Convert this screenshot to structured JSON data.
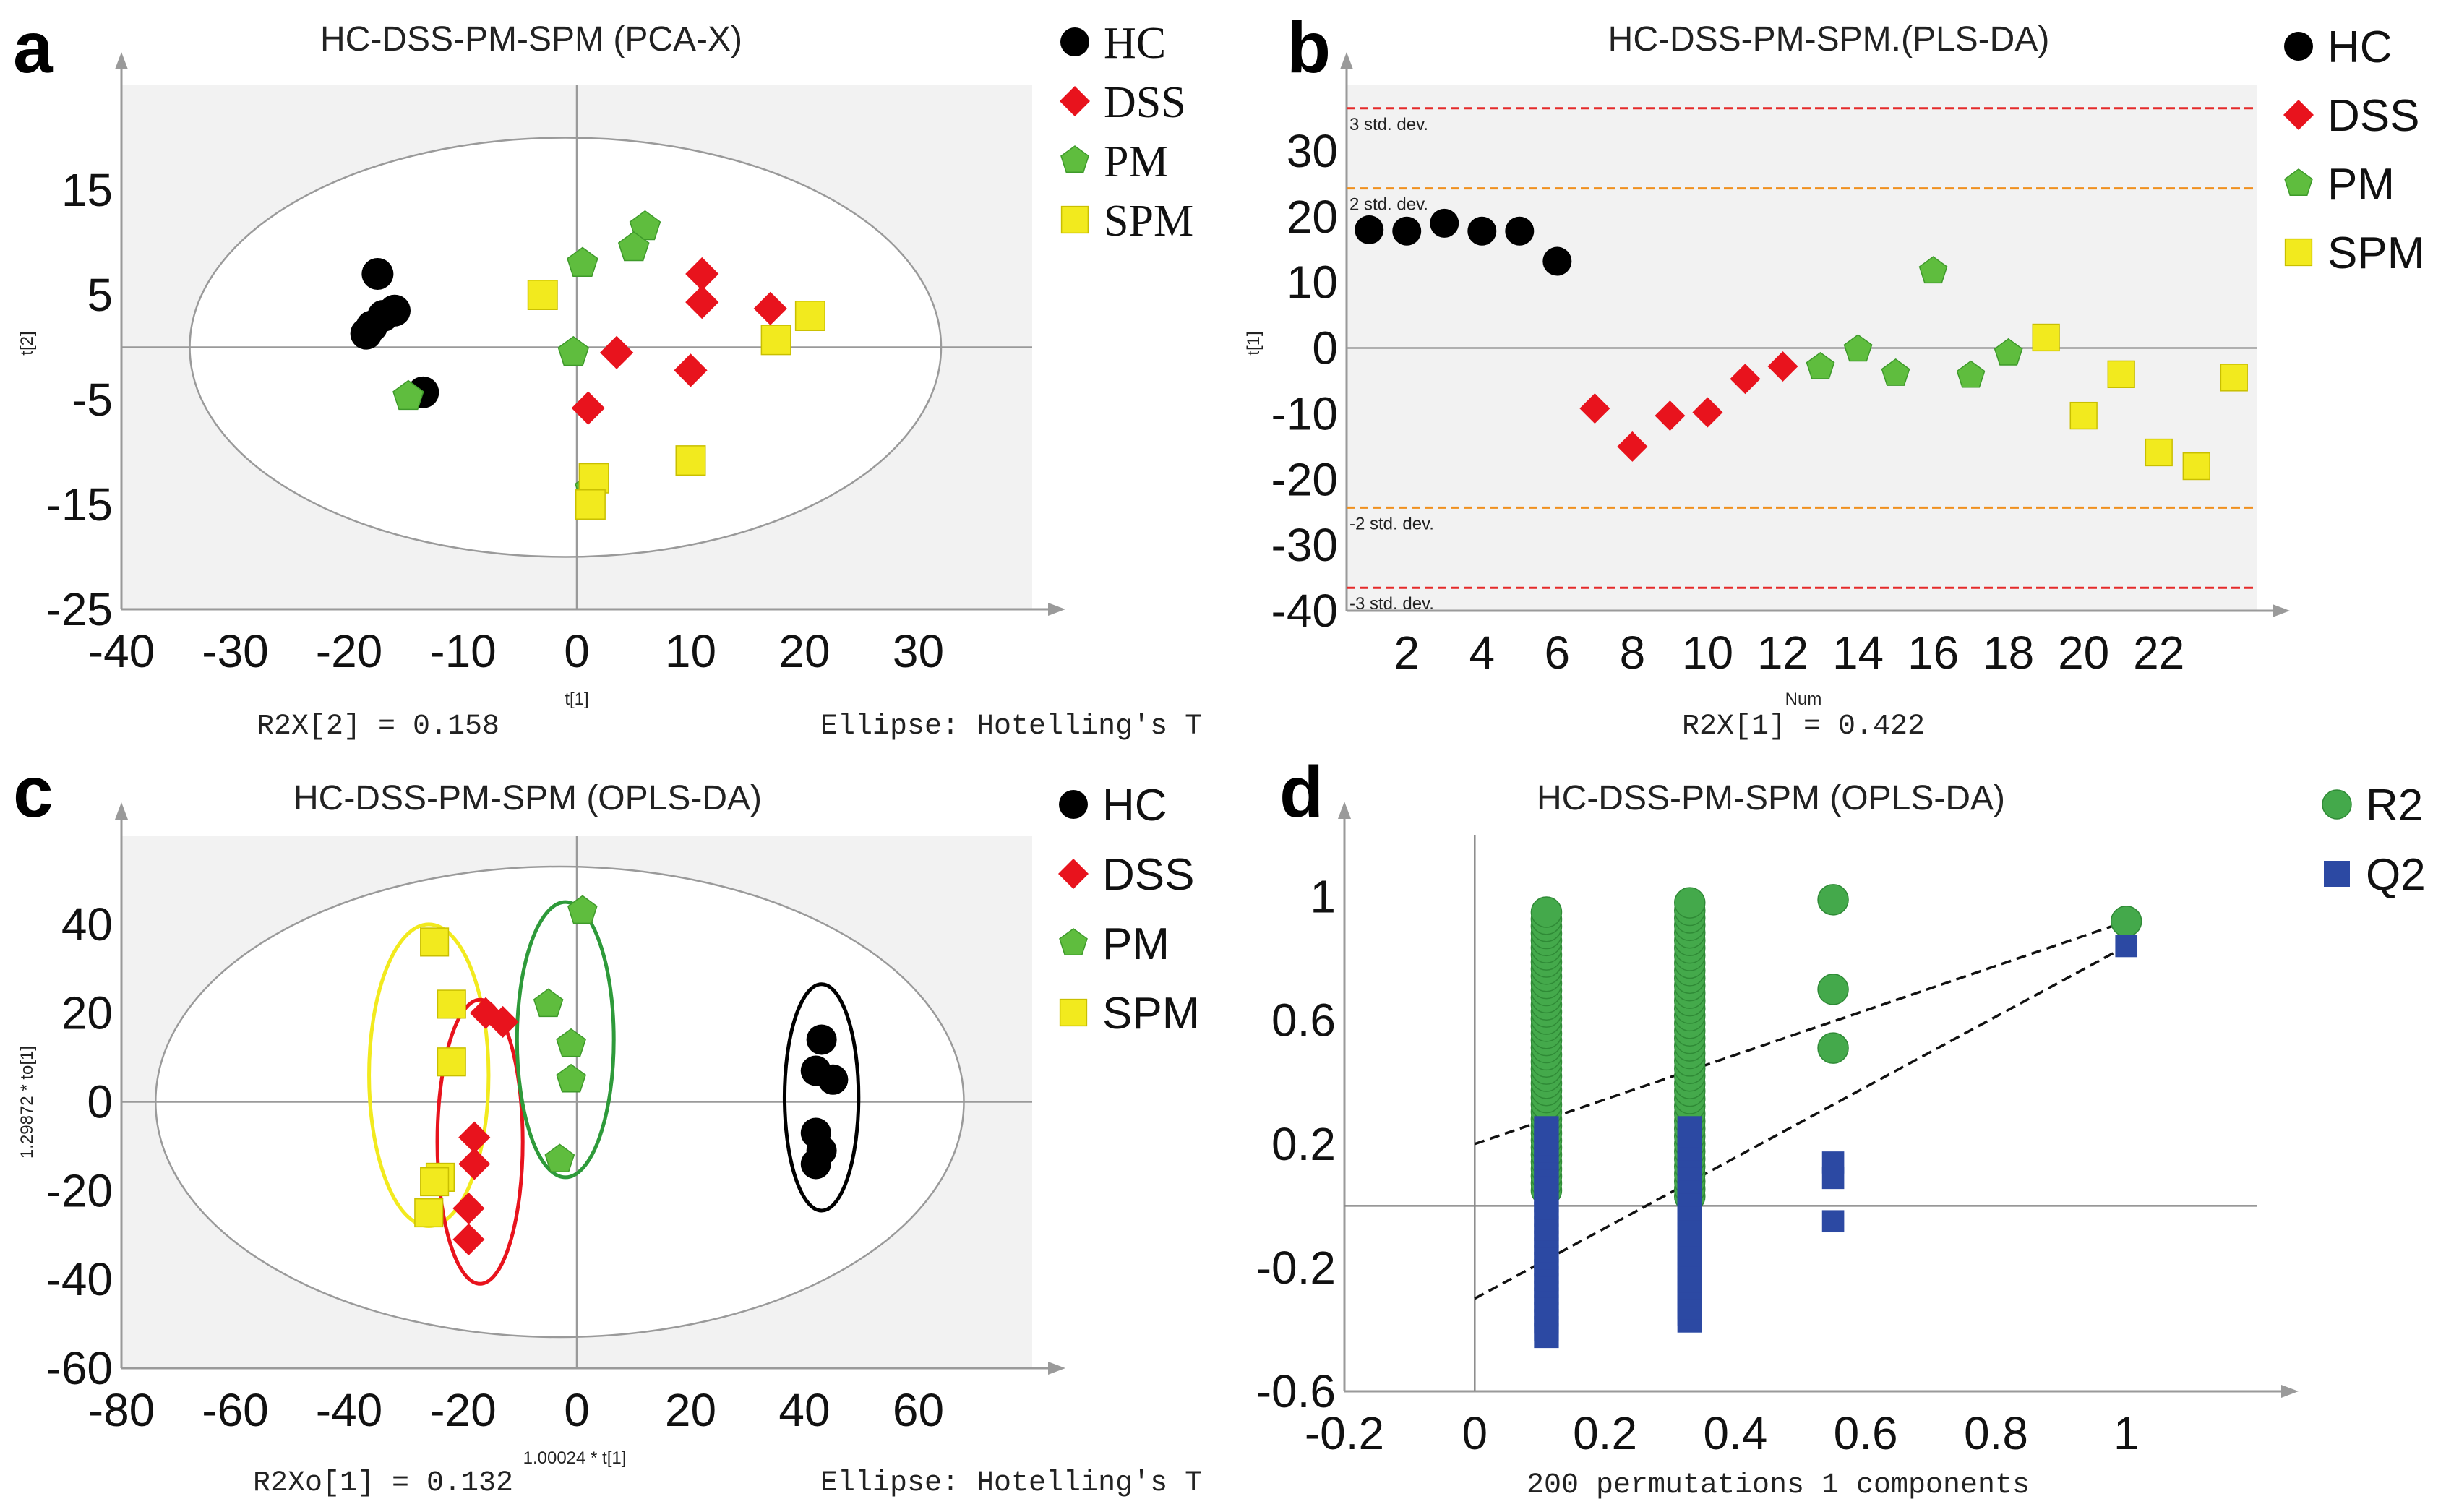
{
  "figure": {
    "colors": {
      "HC": "#000000",
      "DSS": "#e8131d",
      "PM": "#5fbd3e",
      "SPM": "#f2ea1e",
      "R2": "#44a94b",
      "Q2": "#2c49a3",
      "plot_bg": "#f2f2f2"
    }
  },
  "chart_data": [
    {
      "panel": "a",
      "type": "scatter",
      "title": "HC-DSS-PM-SPM (PCA-X)",
      "xlabel": "t[1]",
      "ylabel": "t[2]",
      "xlim": [
        -40,
        40
      ],
      "ylim": [
        -25,
        25
      ],
      "xticks": [
        -40,
        -30,
        -20,
        -10,
        0,
        10,
        20,
        30
      ],
      "yticks": [
        -25,
        -15,
        -5,
        5,
        15
      ],
      "footer_left": "R2X[2] = 0.158",
      "footer_right": "Ellipse: Hotelling's T",
      "legend": [
        "HC",
        "DSS",
        "PM",
        "SPM"
      ],
      "series": [
        {
          "name": "HC",
          "points": [
            [
              -17.5,
              7
            ],
            [
              -16,
              3.5
            ],
            [
              -17,
              3
            ],
            [
              -18,
              2
            ],
            [
              -18.5,
              1.3
            ],
            [
              -13.5,
              -4.3
            ]
          ]
        },
        {
          "name": "DSS",
          "points": [
            [
              11,
              7
            ],
            [
              11,
              4.3
            ],
            [
              17,
              3.7
            ],
            [
              3.5,
              -0.5
            ],
            [
              10,
              -2.2
            ],
            [
              1,
              -5.8
            ]
          ]
        },
        {
          "name": "PM",
          "points": [
            [
              6,
              11.5
            ],
            [
              5,
              9.5
            ],
            [
              0.5,
              8
            ],
            [
              -0.3,
              -0.5
            ],
            [
              -14.8,
              -4.7
            ],
            [
              1.2,
              -13.5
            ]
          ]
        },
        {
          "name": "SPM",
          "points": [
            [
              -3,
              5
            ],
            [
              20.5,
              3
            ],
            [
              17.5,
              0.7
            ],
            [
              10,
              -10.8
            ],
            [
              1.5,
              -12.5
            ],
            [
              1.2,
              -15
            ]
          ]
        }
      ],
      "ellipse": {
        "cx": -1,
        "cy": 0,
        "rx": 33,
        "ry": 20
      }
    },
    {
      "panel": "b",
      "type": "scatter",
      "title": "HC-DSS-PM-SPM.(PLS-DA)",
      "xlabel": "Num",
      "ylabel": "t[1]",
      "xlim": [
        0.4,
        24.6
      ],
      "ylim": [
        -40,
        40
      ],
      "xticks": [
        2,
        4,
        6,
        8,
        10,
        12,
        14,
        16,
        18,
        20,
        22
      ],
      "yticks": [
        -40,
        -30,
        -20,
        -10,
        0,
        10,
        20,
        30
      ],
      "footer_center": "R2X[1] = 0.422",
      "legend": [
        "HC",
        "DSS",
        "PM",
        "SPM"
      ],
      "reference_lines": [
        {
          "label": "3 std. dev.",
          "y": 36.5,
          "color": "#e52b2b"
        },
        {
          "label": "2 std. dev.",
          "y": 24.3,
          "color": "#f0901e"
        },
        {
          "label": "-2 std. dev.",
          "y": -24.3,
          "color": "#f0901e"
        },
        {
          "label": "-3 std. dev.",
          "y": -36.5,
          "color": "#e52b2b"
        }
      ],
      "series": [
        {
          "name": "HC",
          "points": [
            [
              1,
              18
            ],
            [
              2,
              17.8
            ],
            [
              3,
              19
            ],
            [
              4,
              17.8
            ],
            [
              5,
              17.8
            ],
            [
              6,
              13.2
            ]
          ]
        },
        {
          "name": "DSS",
          "points": [
            [
              7,
              -9.2
            ],
            [
              8,
              -15
            ],
            [
              9,
              -10.3
            ],
            [
              10,
              -9.8
            ],
            [
              11,
              -4.7
            ],
            [
              12,
              -2.8
            ]
          ]
        },
        {
          "name": "PM",
          "points": [
            [
              13,
              -2.9
            ],
            [
              14,
              -0.2
            ],
            [
              15,
              -3.9
            ],
            [
              16,
              11.7
            ],
            [
              17,
              -4.2
            ],
            [
              18,
              -0.8
            ]
          ]
        },
        {
          "name": "SPM",
          "points": [
            [
              19,
              1.6
            ],
            [
              20,
              -10.3
            ],
            [
              21,
              -4
            ],
            [
              22,
              -15.9
            ],
            [
              23,
              -18
            ],
            [
              24,
              -4.5
            ]
          ]
        }
      ]
    },
    {
      "panel": "c",
      "type": "scatter",
      "title": "HC-DSS-PM-SPM (OPLS-DA)",
      "xlabel": "1.00024 * t[1]",
      "ylabel": "1.29872 * to[1]",
      "xlim": [
        -80,
        80
      ],
      "ylim": [
        -60,
        60
      ],
      "xticks": [
        -80,
        -60,
        -40,
        -20,
        0,
        20,
        40,
        60
      ],
      "yticks": [
        -60,
        -40,
        -20,
        0,
        20,
        40
      ],
      "footer_left": "R2Xo[1] = 0.132",
      "footer_right": "Ellipse: Hotelling's T",
      "legend": [
        "HC",
        "DSS",
        "PM",
        "SPM"
      ],
      "series": [
        {
          "name": "HC",
          "points": [
            [
              43,
              14
            ],
            [
              42,
              7
            ],
            [
              45,
              5
            ],
            [
              42,
              -7
            ],
            [
              43,
              -11
            ],
            [
              42,
              -14
            ]
          ]
        },
        {
          "name": "DSS",
          "points": [
            [
              -16,
              20
            ],
            [
              -13,
              18
            ],
            [
              -18,
              -8
            ],
            [
              -18,
              -14
            ],
            [
              -19,
              -24
            ],
            [
              -19,
              -31
            ]
          ]
        },
        {
          "name": "PM",
          "points": [
            [
              1,
              43
            ],
            [
              -5,
              22
            ],
            [
              -1,
              13
            ],
            [
              -1,
              5
            ],
            [
              -3,
              -13
            ]
          ]
        },
        {
          "name": "SPM",
          "points": [
            [
              -25,
              36
            ],
            [
              -22,
              22
            ],
            [
              -22,
              9
            ],
            [
              -24,
              -17
            ],
            [
              -25,
              -18
            ],
            [
              -26,
              -25
            ]
          ]
        }
      ],
      "ellipse": {
        "cx": -3,
        "cy": 0,
        "rx": 71,
        "ry": 53
      },
      "group_ellipses": [
        {
          "name": "SPM",
          "cx": -26,
          "cy": 6,
          "rx": 10.5,
          "ry": 34,
          "color": "#f2ea1e"
        },
        {
          "name": "DSS",
          "cx": -17,
          "cy": -9,
          "rx": 7.5,
          "ry": 32,
          "color": "#e8131d"
        },
        {
          "name": "PM",
          "cx": -2,
          "cy": 14,
          "rx": 8.5,
          "ry": 31,
          "color": "#2e9a3a"
        },
        {
          "name": "HC",
          "cx": 43,
          "cy": 1,
          "rx": 6.5,
          "ry": 25.5,
          "color": "#000000"
        }
      ]
    },
    {
      "panel": "d",
      "type": "scatter",
      "title": "HC-DSS-PM-SPM (OPLS-DA)",
      "xlabel": "200 permutations 1 components",
      "xlim": [
        -0.2,
        1.2
      ],
      "ylim": [
        -0.6,
        1.2
      ],
      "xticks": [
        -0.2,
        0,
        0.2,
        0.4,
        0.6,
        0.8,
        1
      ],
      "yticks": [
        -0.6,
        -0.2,
        0.2,
        0.6,
        1
      ],
      "legend": [
        "R2",
        "Q2"
      ],
      "R2_permuted_columns": [
        {
          "x": 0.11,
          "min": 0.05,
          "max": 0.95
        },
        {
          "x": 0.33,
          "min": 0.03,
          "max": 0.98
        }
      ],
      "R2_points": [
        [
          0.55,
          0.99
        ],
        [
          0.55,
          0.7
        ],
        [
          0.55,
          0.51
        ],
        [
          1,
          0.92
        ]
      ],
      "Q2_permuted_columns": [
        {
          "x": 0.11,
          "min": -0.42,
          "max": 0.25
        },
        {
          "x": 0.33,
          "min": -0.37,
          "max": 0.25
        }
      ],
      "Q2_points": [
        [
          0.55,
          0.14
        ],
        [
          0.55,
          0.09
        ],
        [
          0.55,
          -0.05
        ],
        [
          1,
          0.84
        ]
      ],
      "regression_lines": [
        {
          "name": "R2",
          "from": [
            0,
            0.2
          ],
          "to": [
            1,
            0.92
          ]
        },
        {
          "name": "Q2",
          "from": [
            0,
            -0.3
          ],
          "to": [
            1,
            0.84
          ]
        }
      ]
    }
  ]
}
